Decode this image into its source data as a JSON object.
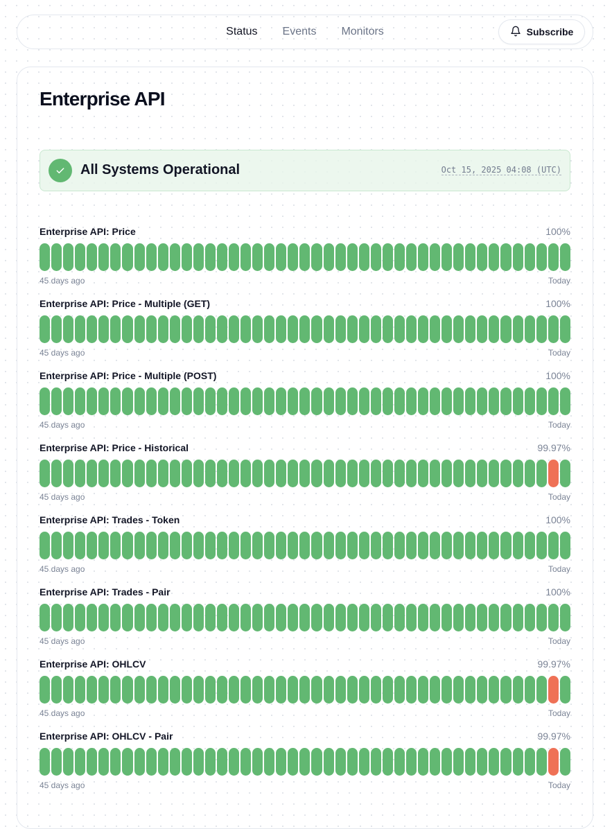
{
  "nav": {
    "links": [
      {
        "label": "Status",
        "active": true
      },
      {
        "label": "Events",
        "active": false
      },
      {
        "label": "Monitors",
        "active": false
      }
    ],
    "subscribe_label": "Subscribe",
    "subscribe_icon": "bell-icon"
  },
  "page": {
    "title": "Enterprise API"
  },
  "banner": {
    "icon": "check-icon",
    "status": "All Systems Operational",
    "timestamp": "Oct 15, 2025 04:08 (UTC)",
    "color": "#62b872"
  },
  "colors": {
    "operational": "#62b872",
    "incident": "#ef7156"
  },
  "range": {
    "days": 45,
    "start_label": "45 days ago",
    "end_label": "Today"
  },
  "monitors": [
    {
      "name": "Enterprise API: Price",
      "uptime": "100%",
      "incident_days_from_end": []
    },
    {
      "name": "Enterprise API: Price - Multiple (GET)",
      "uptime": "100%",
      "incident_days_from_end": []
    },
    {
      "name": "Enterprise API: Price - Multiple (POST)",
      "uptime": "100%",
      "incident_days_from_end": []
    },
    {
      "name": "Enterprise API: Price - Historical",
      "uptime": "99.97%",
      "incident_days_from_end": [
        1
      ]
    },
    {
      "name": "Enterprise API: Trades - Token",
      "uptime": "100%",
      "incident_days_from_end": []
    },
    {
      "name": "Enterprise API: Trades - Pair",
      "uptime": "100%",
      "incident_days_from_end": []
    },
    {
      "name": "Enterprise API: OHLCV",
      "uptime": "99.97%",
      "incident_days_from_end": [
        1
      ]
    },
    {
      "name": "Enterprise API: OHLCV - Pair",
      "uptime": "99.97%",
      "incident_days_from_end": [
        1
      ]
    }
  ]
}
